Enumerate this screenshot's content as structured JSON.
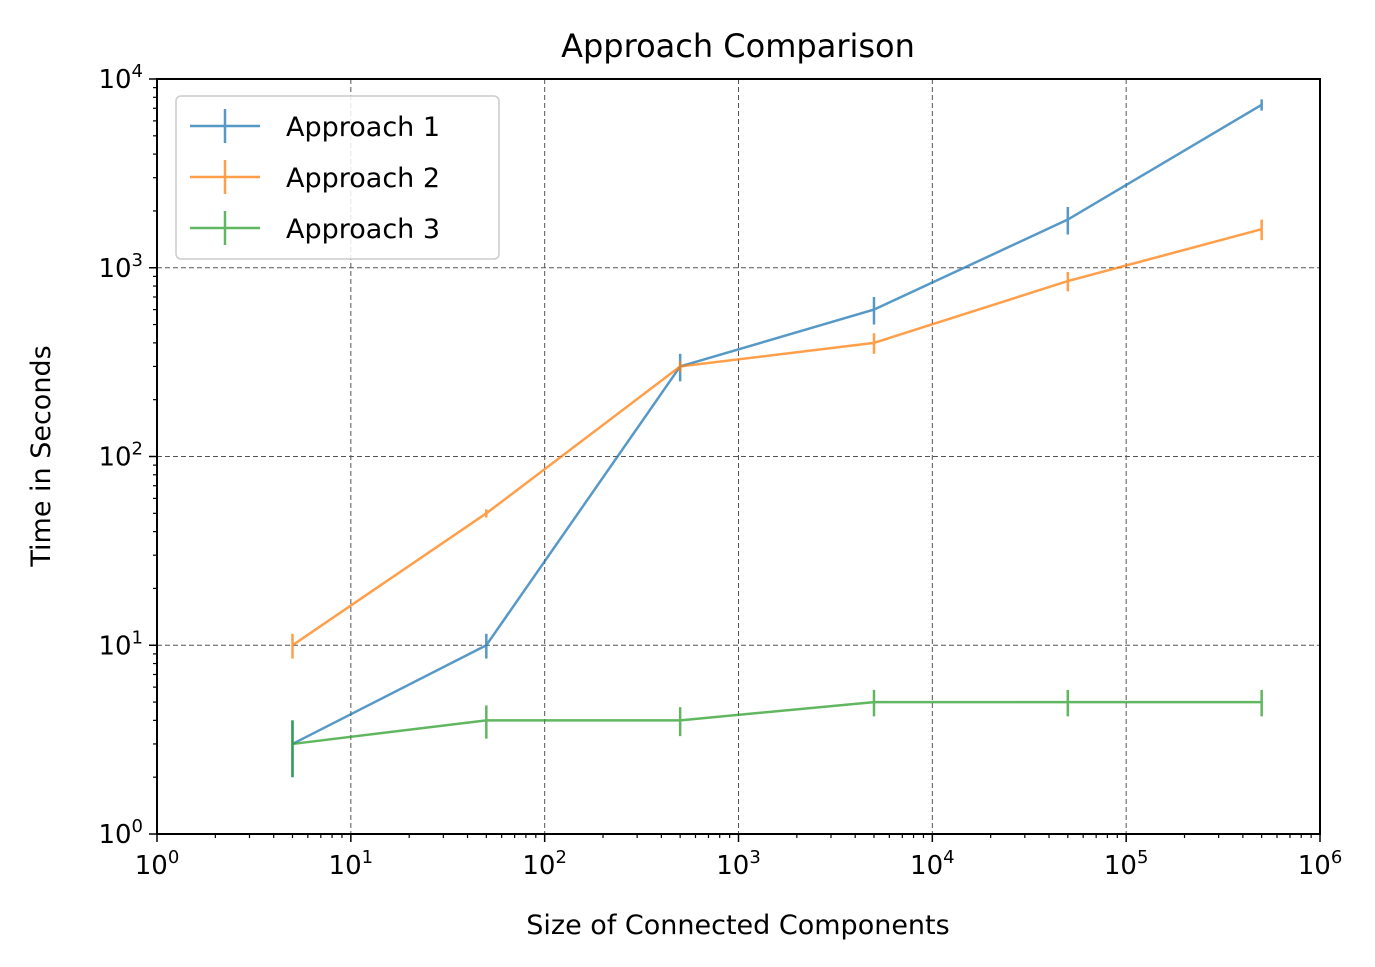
{
  "chart_data": {
    "type": "line",
    "title": "Approach Comparison",
    "xlabel": "Size of Connected Components",
    "ylabel": "Time in Seconds",
    "xscale": "log",
    "yscale": "log",
    "xlim": [
      1,
      1000000
    ],
    "ylim": [
      1,
      10000
    ],
    "x": [
      5,
      50,
      500,
      5000,
      50000,
      500000
    ],
    "x_ticks": [
      {
        "value": 1,
        "base": "10",
        "exp": "0"
      },
      {
        "value": 10,
        "base": "10",
        "exp": "1"
      },
      {
        "value": 100,
        "base": "10",
        "exp": "2"
      },
      {
        "value": 1000,
        "base": "10",
        "exp": "3"
      },
      {
        "value": 10000,
        "base": "10",
        "exp": "4"
      },
      {
        "value": 100000,
        "base": "10",
        "exp": "5"
      },
      {
        "value": 1000000,
        "base": "10",
        "exp": "6"
      }
    ],
    "y_ticks": [
      {
        "value": 1,
        "base": "10",
        "exp": "0"
      },
      {
        "value": 10,
        "base": "10",
        "exp": "1"
      },
      {
        "value": 100,
        "base": "10",
        "exp": "2"
      },
      {
        "value": 1000,
        "base": "10",
        "exp": "3"
      },
      {
        "value": 10000,
        "base": "10",
        "exp": "4"
      }
    ],
    "grid": true,
    "grid_style": "dashed",
    "legend_position": "upper-left",
    "series": [
      {
        "name": "Approach 1",
        "color": "#1f77b4",
        "values": [
          3,
          10,
          300,
          600,
          1800,
          7300
        ],
        "errors": [
          1,
          1.5,
          50,
          100,
          300,
          500
        ]
      },
      {
        "name": "Approach 2",
        "color": "#ff7f0e",
        "values": [
          10,
          50,
          300,
          400,
          850,
          1600
        ],
        "errors": [
          1.5,
          2.5,
          20,
          50,
          100,
          200
        ]
      },
      {
        "name": "Approach 3",
        "color": "#2ca02c",
        "values": [
          3,
          4,
          4,
          5,
          5,
          5
        ],
        "errors": [
          1,
          0.8,
          0.7,
          0.8,
          0.8,
          0.8
        ]
      }
    ]
  }
}
